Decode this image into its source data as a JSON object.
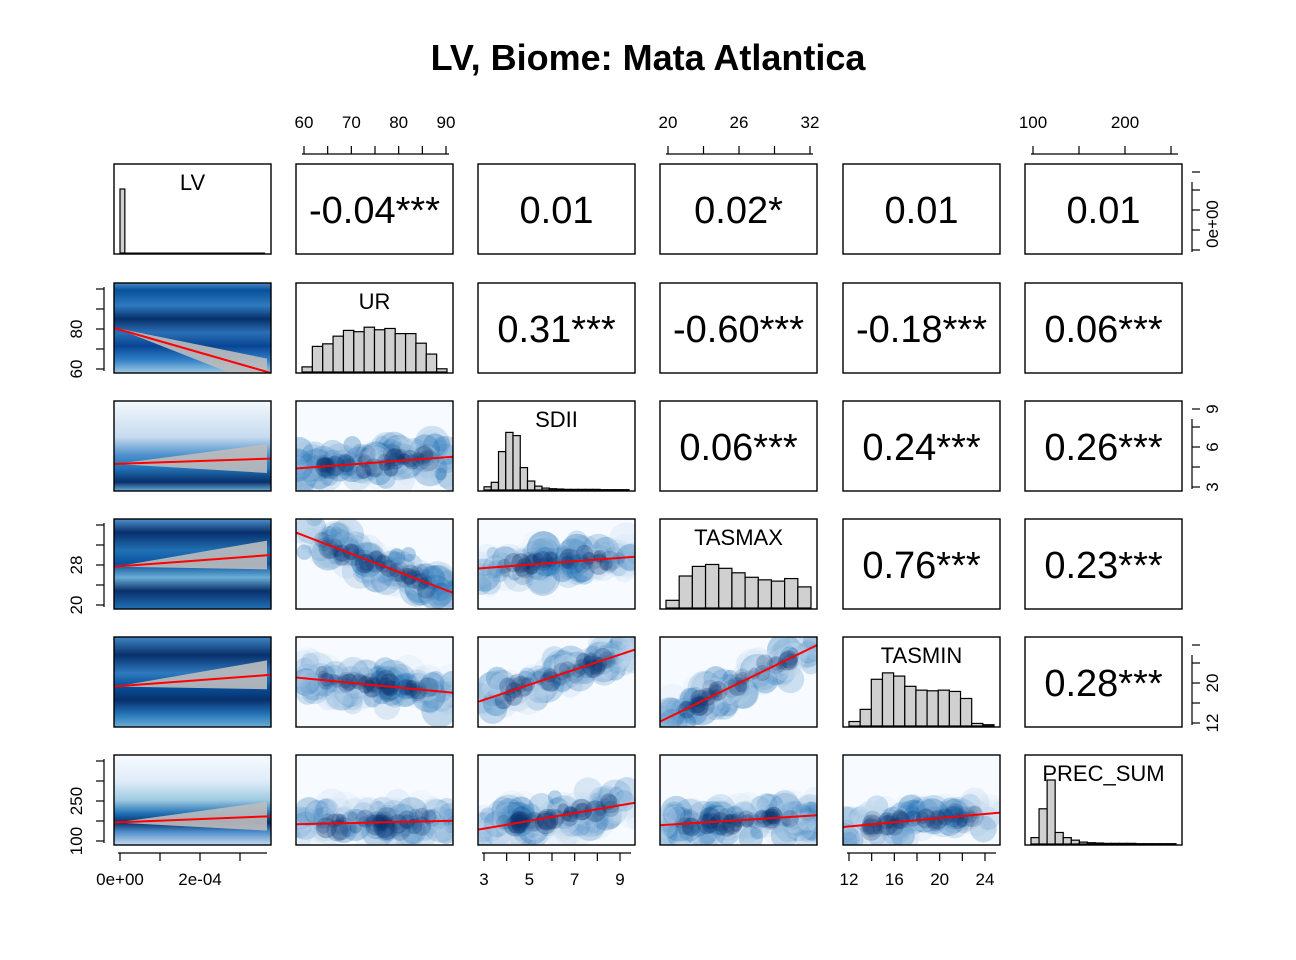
{
  "chart_data": {
    "type": "pairs",
    "title": "LV, Biome: Mata Atlantica",
    "variables": [
      "LV",
      "UR",
      "SDII",
      "TASMAX",
      "TASMIN",
      "PREC_SUM"
    ],
    "correlations": [
      {
        "row": 0,
        "col": 1,
        "label": "-0.04***"
      },
      {
        "row": 0,
        "col": 2,
        "label": "0.01"
      },
      {
        "row": 0,
        "col": 3,
        "label": "0.02*"
      },
      {
        "row": 0,
        "col": 4,
        "label": "0.01"
      },
      {
        "row": 0,
        "col": 5,
        "label": "0.01"
      },
      {
        "row": 1,
        "col": 2,
        "label": "0.31***"
      },
      {
        "row": 1,
        "col": 3,
        "label": "-0.60***"
      },
      {
        "row": 1,
        "col": 4,
        "label": "-0.18***"
      },
      {
        "row": 1,
        "col": 5,
        "label": "0.06***"
      },
      {
        "row": 2,
        "col": 3,
        "label": "0.06***"
      },
      {
        "row": 2,
        "col": 4,
        "label": "0.24***"
      },
      {
        "row": 2,
        "col": 5,
        "label": "0.26***"
      },
      {
        "row": 3,
        "col": 4,
        "label": "0.76***"
      },
      {
        "row": 3,
        "col": 5,
        "label": "0.23***"
      },
      {
        "row": 4,
        "col": 5,
        "label": "0.28***"
      }
    ],
    "axes": {
      "top": [
        {
          "col": 1,
          "labels": [
            "60",
            "70",
            "80",
            "90"
          ]
        },
        {
          "col": 3,
          "labels": [
            "20",
            "26",
            "32"
          ]
        },
        {
          "col": 5,
          "labels": [
            "100",
            "200"
          ]
        }
      ],
      "bottom": [
        {
          "col": 0,
          "labels": [
            "0e+00",
            "2e-04"
          ]
        },
        {
          "col": 2,
          "labels": [
            "3",
            "5",
            "7",
            "9"
          ]
        },
        {
          "col": 4,
          "labels": [
            "12",
            "16",
            "20",
            "24"
          ]
        }
      ],
      "left": [
        {
          "row": 1,
          "labels": [
            "60",
            "80"
          ]
        },
        {
          "row": 3,
          "labels": [
            "20",
            "28"
          ]
        },
        {
          "row": 5,
          "labels": [
            "100",
            "250"
          ]
        }
      ],
      "right": [
        {
          "row": 0,
          "labels": [
            "0e+00"
          ]
        },
        {
          "row": 2,
          "labels": [
            "3",
            "6",
            "9"
          ]
        },
        {
          "row": 4,
          "labels": [
            "12",
            "20"
          ]
        }
      ]
    },
    "histograms": {
      "LV": [
        1.0,
        0,
        0,
        0,
        0,
        0,
        0,
        0,
        0,
        0,
        0,
        0,
        0,
        0,
        0,
        0,
        0,
        0,
        0,
        0,
        0,
        0,
        0,
        0,
        0,
        0,
        0,
        0,
        0,
        0
      ],
      "UR": [
        0.08,
        0.4,
        0.44,
        0.56,
        0.65,
        0.63,
        0.7,
        0.66,
        0.68,
        0.6,
        0.6,
        0.45,
        0.28,
        0.05
      ],
      "SDII": [
        0.05,
        0.12,
        0.6,
        0.9,
        0.85,
        0.35,
        0.14,
        0.06,
        0.03,
        0.02,
        0.015,
        0.01,
        0.01,
        0.01,
        0.01,
        0.01,
        0.005,
        0.005,
        0.005,
        0.005
      ],
      "TASMAX": [
        0.12,
        0.5,
        0.65,
        0.68,
        0.62,
        0.55,
        0.48,
        0.44,
        0.42,
        0.46,
        0.33
      ],
      "TASMIN": [
        0.07,
        0.26,
        0.73,
        0.83,
        0.78,
        0.62,
        0.56,
        0.55,
        0.56,
        0.54,
        0.43,
        0.04,
        0.02
      ],
      "PREC_SUM": [
        0.1,
        0.55,
        1.0,
        0.18,
        0.1,
        0.06,
        0.03,
        0.02,
        0.015,
        0.01,
        0.01,
        0.01,
        0.01,
        0.005,
        0.005,
        0.005,
        0.005,
        0.005
      ]
    },
    "fit_lines": [
      {
        "row": 1,
        "col": 0,
        "y": [
          0.5,
          0.0
        ]
      },
      {
        "row": 2,
        "col": 0,
        "y": [
          0.3,
          0.36
        ]
      },
      {
        "row": 3,
        "col": 0,
        "y": [
          0.47,
          0.6
        ]
      },
      {
        "row": 4,
        "col": 0,
        "y": [
          0.45,
          0.58
        ]
      },
      {
        "row": 5,
        "col": 0,
        "y": [
          0.25,
          0.32
        ]
      },
      {
        "row": 2,
        "col": 1,
        "y": [
          0.25,
          0.38
        ]
      },
      {
        "row": 3,
        "col": 1,
        "y": [
          0.85,
          0.18
        ]
      },
      {
        "row": 4,
        "col": 1,
        "y": [
          0.55,
          0.38
        ]
      },
      {
        "row": 5,
        "col": 1,
        "y": [
          0.23,
          0.27
        ]
      },
      {
        "row": 3,
        "col": 2,
        "y": [
          0.45,
          0.58
        ]
      },
      {
        "row": 4,
        "col": 2,
        "y": [
          0.28,
          0.86
        ]
      },
      {
        "row": 5,
        "col": 2,
        "y": [
          0.17,
          0.47
        ]
      },
      {
        "row": 4,
        "col": 3,
        "y": [
          0.06,
          0.91
        ]
      },
      {
        "row": 5,
        "col": 3,
        "y": [
          0.22,
          0.33
        ]
      },
      {
        "row": 5,
        "col": 4,
        "y": [
          0.2,
          0.36
        ]
      }
    ],
    "colors": {
      "line": "#ff0000",
      "bar": "#d0d0d0",
      "density_dark": "#08306b",
      "density_mid": "#2171b5",
      "density_light": "#c6dbef",
      "ribbon": "#bdbdbd"
    }
  }
}
